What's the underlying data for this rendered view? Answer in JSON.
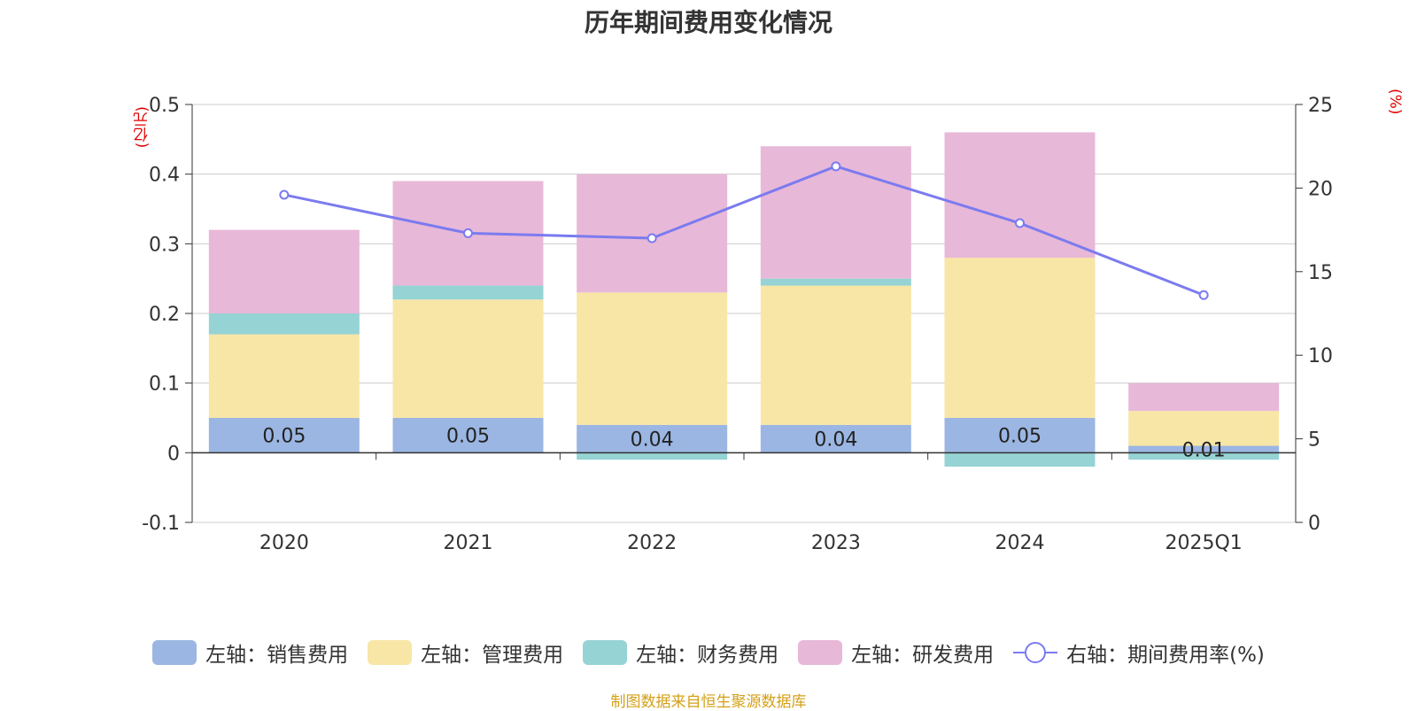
{
  "title": "历年期间费用变化情况",
  "footer": "制图数据来自恒生聚源数据库",
  "units": {
    "left": "(亿元)",
    "right": "(%)"
  },
  "legend": [
    {
      "label": "左轴：销售费用",
      "color": "#9bb6e2"
    },
    {
      "label": "左轴：管理费用",
      "color": "#f7e6a6"
    },
    {
      "label": "左轴：财务费用",
      "color": "#96d3d4"
    },
    {
      "label": "左轴：研发费用",
      "color": "#e8b8d8"
    },
    {
      "label": "右轴：期间费用率(%)",
      "color": "#7b7bef"
    }
  ],
  "chart_data": {
    "type": "bar",
    "categories": [
      "2020",
      "2021",
      "2022",
      "2023",
      "2024",
      "2025Q1"
    ],
    "series": [
      {
        "name": "左轴：销售费用",
        "axis": "left",
        "color": "#9bb6e2",
        "values": [
          0.05,
          0.05,
          0.04,
          0.04,
          0.05,
          0.01
        ],
        "labels": [
          "0.05",
          "0.05",
          "0.04",
          "0.04",
          "0.05",
          "0.01"
        ]
      },
      {
        "name": "左轴：管理费用",
        "axis": "left",
        "color": "#f7e6a6",
        "values": [
          0.12,
          0.17,
          0.19,
          0.2,
          0.23,
          0.05
        ]
      },
      {
        "name": "左轴：财务费用",
        "axis": "left",
        "color": "#96d3d4",
        "values": [
          0.03,
          0.02,
          -0.01,
          0.01,
          -0.02,
          -0.01
        ]
      },
      {
        "name": "左轴：研发费用",
        "axis": "left",
        "color": "#e8b8d8",
        "values": [
          0.12,
          0.15,
          0.17,
          0.19,
          0.18,
          0.04
        ]
      },
      {
        "name": "右轴：期间费用率(%)",
        "axis": "right",
        "type": "line",
        "color": "#7b7bef",
        "values": [
          19.6,
          17.3,
          17.0,
          21.3,
          17.9,
          13.6
        ]
      }
    ],
    "left_axis": {
      "min": -0.1,
      "max": 0.5,
      "ticks": [
        "-0.1",
        "0",
        "0.1",
        "0.2",
        "0.3",
        "0.4",
        "0.5"
      ]
    },
    "right_axis": {
      "min": 0,
      "max": 25,
      "ticks": [
        "0",
        "5",
        "10",
        "15",
        "20",
        "25"
      ]
    },
    "grid": true,
    "legend_position": "bottom"
  }
}
